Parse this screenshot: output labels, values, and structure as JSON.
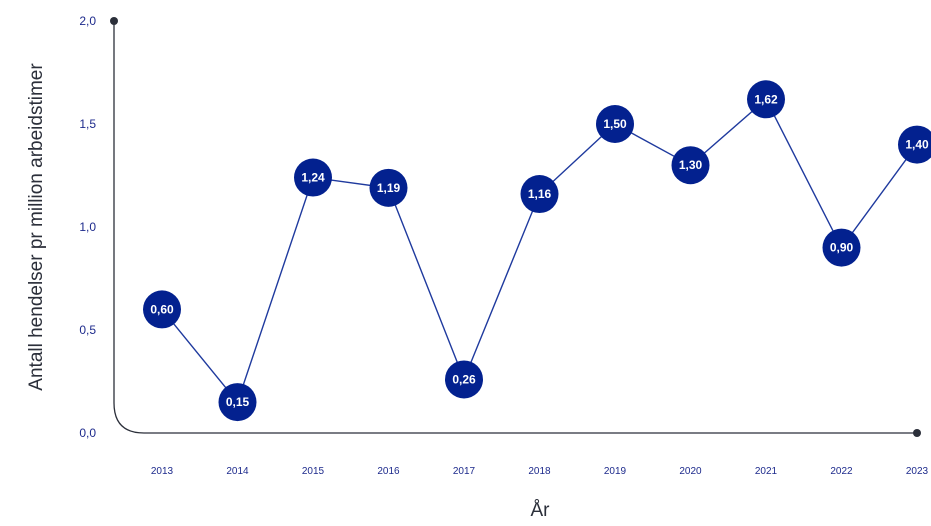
{
  "chart_data": {
    "type": "line",
    "title": "",
    "xlabel": "År",
    "ylabel": "Antall hendelser pr million arbeidstimer",
    "x": [
      "2013",
      "2014",
      "2015",
      "2016",
      "2017",
      "2018",
      "2019",
      "2020",
      "2021",
      "2022",
      "2023"
    ],
    "series": [
      {
        "values": [
          0.6,
          0.15,
          1.24,
          1.19,
          0.26,
          1.16,
          1.5,
          1.3,
          1.62,
          0.9,
          1.4
        ],
        "labels": [
          "0,60",
          "0,15",
          "1,24",
          "1,19",
          "0,26",
          "1,16",
          "1,50",
          "1,30",
          "1,62",
          "0,90",
          "1,40"
        ]
      }
    ],
    "yticks": [
      {
        "value": 0,
        "label": "0,0"
      },
      {
        "value": 0.5,
        "label": "0,5"
      },
      {
        "value": 1.0,
        "label": "1,0"
      },
      {
        "value": 1.5,
        "label": "1,5"
      },
      {
        "value": 2.0,
        "label": "2,0"
      }
    ],
    "ylim": [
      0,
      2.0
    ],
    "grid": false,
    "legend": "none",
    "colors": {
      "point": "#03218f",
      "line": "#1f3a9e",
      "tick_text": "#1d2a8c",
      "axis": "#2b2f3a"
    }
  }
}
